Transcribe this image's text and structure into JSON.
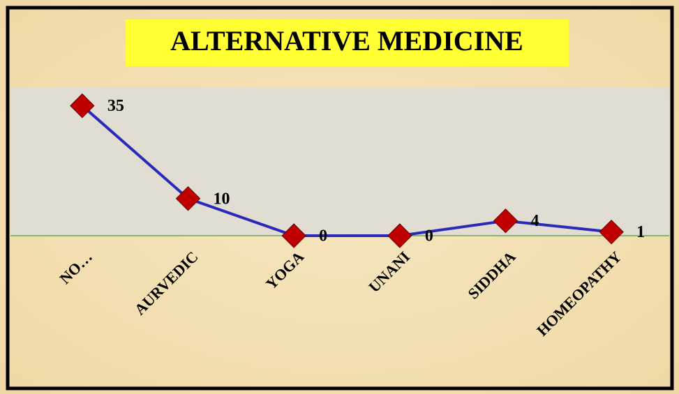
{
  "chart_data": {
    "type": "line",
    "title": "ALTERNATIVE  MEDICINE",
    "categories": [
      "NO…",
      "AURVEDIC",
      "YOGA",
      "UNANI",
      "SIDDHA",
      "HOMEOPATHY"
    ],
    "series": [
      {
        "color": "#2a2ab8",
        "marker_color": "#c00000",
        "values": [
          35,
          10,
          0,
          0,
          4,
          1
        ]
      }
    ],
    "ylim": [
      0,
      40
    ]
  }
}
